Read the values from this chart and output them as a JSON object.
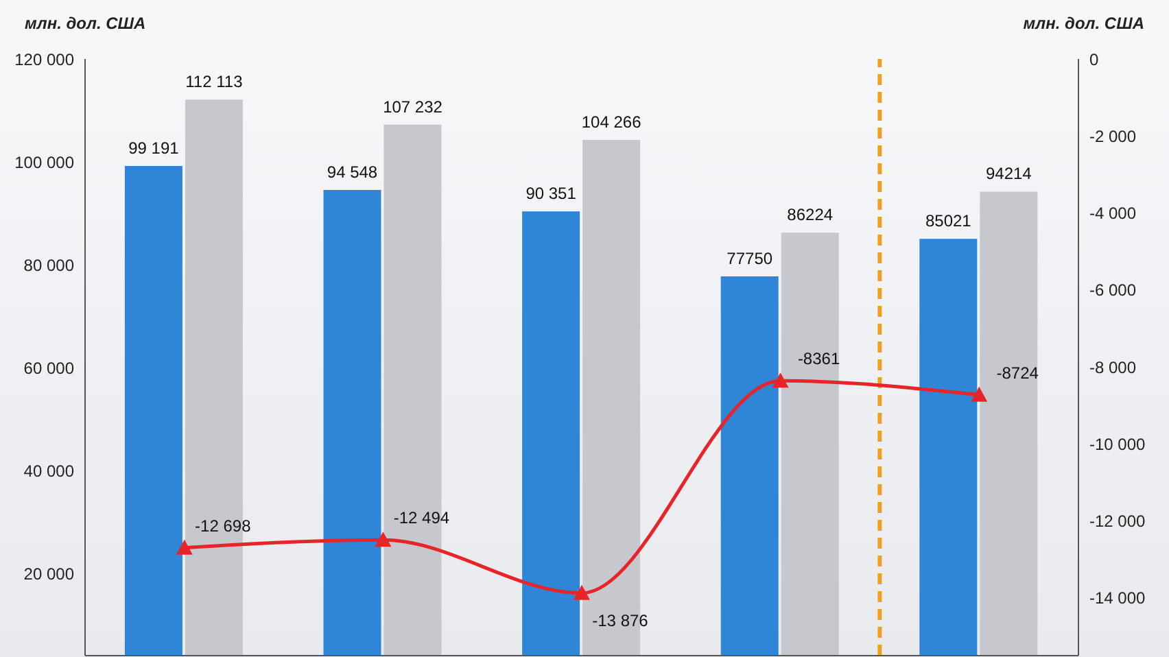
{
  "chart_data": {
    "type": "bar",
    "ylabel": "млн. дол. США",
    "y2label": "млн. дол. США",
    "categories": [
      null,
      null,
      null,
      null,
      null
    ],
    "series": [
      {
        "color": "#2f86d6",
        "values": [
          99191,
          94548,
          90351,
          77750,
          85021
        ],
        "value_labels": [
          "99 191",
          "94 548",
          "90 351",
          "77750",
          "85021"
        ]
      },
      {
        "color": "#c6c8cd",
        "values": [
          112113,
          107232,
          104266,
          86224,
          94214
        ],
        "value_labels": [
          "112 113",
          "107 232",
          "104 266",
          "86224",
          "94214"
        ]
      },
      {
        "type": "line",
        "axis": "y2",
        "color": "#e8242b",
        "marker": "triangle",
        "values": [
          -12698,
          -12494,
          -13876,
          -8361,
          -8724
        ],
        "value_labels": [
          "-12 698",
          "-12 494",
          "-13 876",
          "-8361",
          "-8724"
        ]
      }
    ],
    "ylim": [
      4000,
      120000
    ],
    "yticks": [
      20000,
      40000,
      60000,
      80000,
      100000,
      120000
    ],
    "y2lim": [
      -15500,
      0
    ],
    "y2ticks": [
      -14000,
      -12000,
      -10000,
      -8000,
      -6000,
      -4000,
      -2000,
      0
    ],
    "grid": false,
    "legend": false
  }
}
